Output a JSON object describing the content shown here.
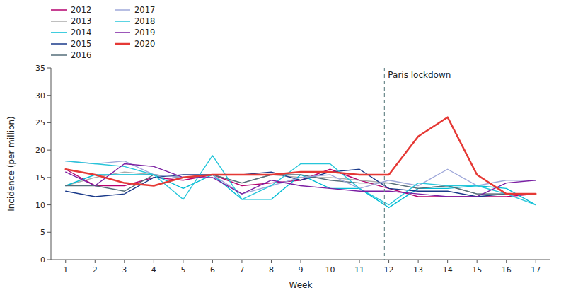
{
  "chart_data": {
    "type": "line",
    "x": [
      1,
      2,
      3,
      4,
      5,
      6,
      7,
      8,
      9,
      10,
      11,
      12,
      13,
      14,
      15,
      16,
      17
    ],
    "series": [
      {
        "name": "2012",
        "color": "#b5006e",
        "values": [
          16.5,
          13.5,
          13.5,
          15.0,
          14.5,
          15.5,
          13.5,
          14.0,
          14.5,
          16.5,
          14.5,
          13.0,
          11.5,
          11.5,
          11.5,
          11.5,
          12.0
        ]
      },
      {
        "name": "2013",
        "color": "#aaaaaa",
        "values": [
          13.5,
          15.0,
          16.0,
          15.5,
          15.0,
          15.5,
          14.0,
          15.5,
          15.0,
          15.0,
          14.5,
          14.0,
          13.0,
          13.5,
          12.0,
          12.0,
          12.0
        ]
      },
      {
        "name": "2014",
        "color": "#00bcd4",
        "values": [
          13.5,
          15.5,
          15.5,
          15.5,
          13.0,
          15.5,
          11.0,
          11.0,
          15.5,
          13.0,
          13.0,
          9.5,
          13.0,
          13.0,
          13.5,
          13.0,
          10.0
        ]
      },
      {
        "name": "2015",
        "color": "#1a3a8a",
        "values": [
          12.5,
          11.5,
          12.0,
          15.0,
          15.5,
          15.5,
          15.5,
          16.0,
          14.5,
          16.0,
          16.5,
          13.0,
          12.5,
          12.5,
          11.5,
          12.0,
          12.0
        ]
      },
      {
        "name": "2016",
        "color": "#546e7a",
        "values": [
          13.5,
          13.5,
          12.5,
          15.5,
          15.0,
          15.5,
          14.0,
          15.5,
          15.5,
          14.5,
          14.0,
          14.0,
          13.0,
          13.5,
          12.0,
          12.0,
          12.0
        ]
      },
      {
        "name": "2017",
        "color": "#9fa8da",
        "values": [
          18.0,
          17.5,
          18.0,
          15.5,
          15.0,
          15.5,
          12.0,
          13.5,
          15.0,
          15.5,
          13.0,
          14.5,
          13.5,
          16.5,
          13.5,
          14.5,
          14.5
        ]
      },
      {
        "name": "2018",
        "color": "#26c6da",
        "values": [
          18.0,
          17.5,
          17.0,
          15.5,
          11.0,
          19.0,
          11.0,
          13.5,
          17.5,
          17.5,
          13.0,
          10.0,
          14.0,
          13.5,
          13.5,
          12.0,
          10.0
        ]
      },
      {
        "name": "2019",
        "color": "#7b1fa2",
        "values": [
          16.0,
          13.5,
          17.5,
          17.0,
          15.0,
          15.0,
          12.0,
          14.5,
          13.5,
          13.0,
          12.5,
          12.5,
          12.0,
          11.5,
          11.5,
          14.0,
          14.5
        ]
      },
      {
        "name": "2020",
        "color": "#e53935",
        "values": [
          16.5,
          15.5,
          14.0,
          13.5,
          15.0,
          15.5,
          15.5,
          15.5,
          16.0,
          16.0,
          15.5,
          15.5,
          22.5,
          26.0,
          15.5,
          12.0,
          12.0
        ]
      }
    ],
    "annotations": [
      {
        "text": "Paris lockdown",
        "x": 11.85
      }
    ],
    "xlabel": "Week",
    "ylabel": "Incidence (per million)",
    "xlim": [
      0.5,
      17.5
    ],
    "xticks": [
      1,
      2,
      3,
      4,
      5,
      6,
      7,
      8,
      9,
      10,
      11,
      12,
      13,
      14,
      15,
      16,
      17
    ],
    "ylim": [
      0,
      35
    ],
    "yticks": [
      0,
      5,
      10,
      15,
      20,
      25,
      30,
      35
    ],
    "grid": false,
    "legend": "top-left"
  }
}
